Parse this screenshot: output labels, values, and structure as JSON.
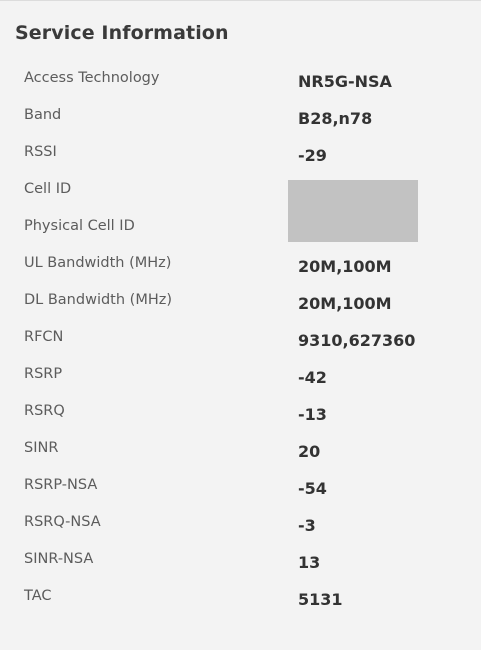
{
  "panel": {
    "title": "Service Information"
  },
  "rows": [
    {
      "label": "Access Technology",
      "value": "NR5G-NSA"
    },
    {
      "label": "Band",
      "value": "B28,n78"
    },
    {
      "label": "RSSI",
      "value": "-29"
    },
    {
      "label": "Cell ID",
      "value": ""
    },
    {
      "label": "Physical Cell ID",
      "value": ""
    },
    {
      "label": "UL Bandwidth (MHz)",
      "value": "20M,100M"
    },
    {
      "label": "DL Bandwidth (MHz)",
      "value": "20M,100M"
    },
    {
      "label": "RFCN",
      "value": "9310,627360"
    },
    {
      "label": "RSRP",
      "value": "-42"
    },
    {
      "label": "RSRQ",
      "value": "-13"
    },
    {
      "label": "SINR",
      "value": "20"
    },
    {
      "label": "RSRP-NSA",
      "value": "-54"
    },
    {
      "label": "RSRQ-NSA",
      "value": "-3"
    },
    {
      "label": "SINR-NSA",
      "value": "13"
    },
    {
      "label": "TAC",
      "value": "5131"
    }
  ]
}
